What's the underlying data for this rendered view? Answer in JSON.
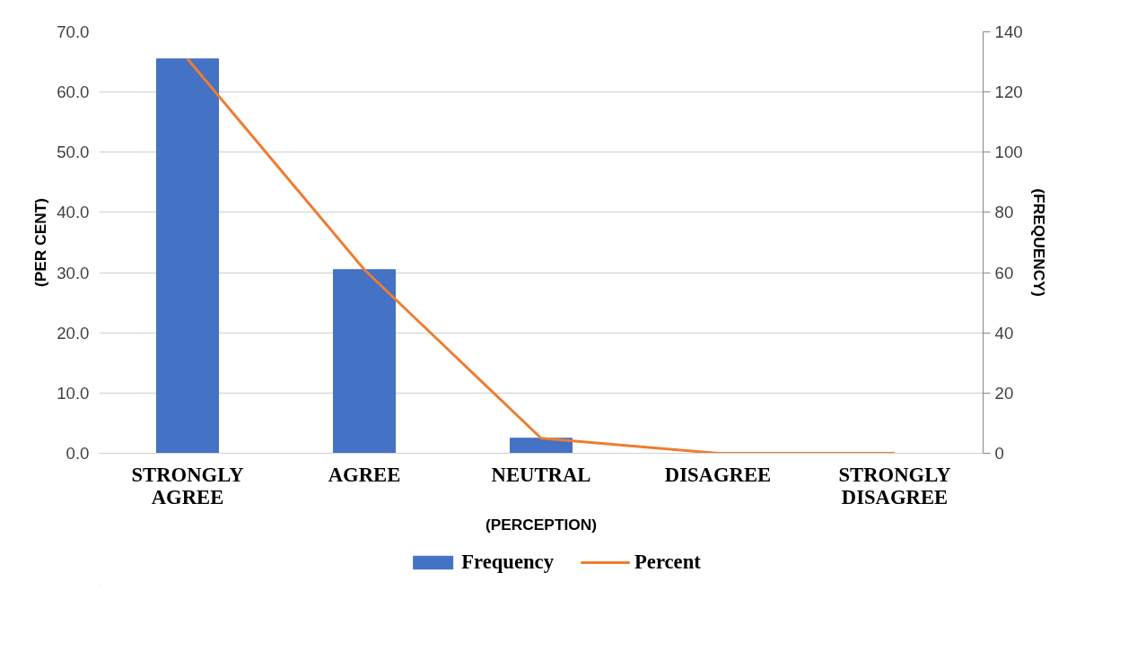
{
  "chart_data": {
    "type": "bar",
    "xlabel": "(PERCEPTION)",
    "ylabel": "(PER CENT)",
    "y2label": "(FREQUENCY)",
    "categories": [
      "STRONGLY AGREE",
      "AGREE",
      "NEUTRAL",
      "DISAGREE",
      "STRONGLY DISAGREE"
    ],
    "series": [
      {
        "name": "Frequency",
        "axis": "y2",
        "color": "#4472c4",
        "values": [
          131,
          61,
          5,
          0,
          0
        ]
      },
      {
        "name": "Percent",
        "type": "line",
        "color": "#ed7d31",
        "values": [
          65.5,
          30.5,
          2.5,
          0,
          0
        ]
      }
    ],
    "ylim": [
      0,
      70
    ],
    "yticks": [
      {
        "value": 0,
        "label": "0.0"
      },
      {
        "value": 10,
        "label": "10.0"
      },
      {
        "value": 20,
        "label": "20.0"
      },
      {
        "value": 30,
        "label": "30.0"
      },
      {
        "value": 40,
        "label": "40.0"
      },
      {
        "value": 50,
        "label": "50.0"
      },
      {
        "value": 60,
        "label": "60.0"
      },
      {
        "value": 70,
        "label": "70.0"
      }
    ],
    "y2lim": [
      0,
      140
    ],
    "y2ticks": [
      0,
      20,
      40,
      60,
      80,
      100,
      120,
      140
    ],
    "grid": "y",
    "legend": "bottom"
  }
}
